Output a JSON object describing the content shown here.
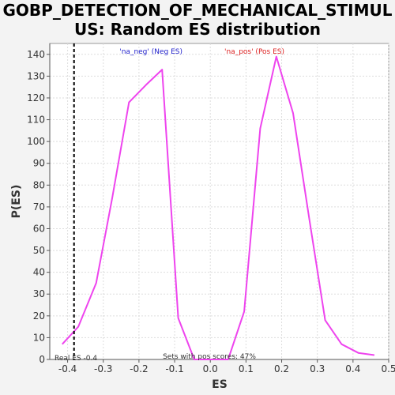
{
  "chart_data": {
    "type": "line",
    "title_line1": "GOBP_DETECTION_OF_MECHANICAL_STIMUL",
    "title_line2": "US: Random ES distribution",
    "xlabel": "ES",
    "ylabel": "P(ES)",
    "xlim": [
      -0.45,
      0.5
    ],
    "ylim": [
      0,
      145
    ],
    "xticks": [
      -0.4,
      -0.3,
      -0.2,
      -0.1,
      0.0,
      0.1,
      0.2,
      0.3,
      0.4,
      0.5
    ],
    "xtick_labels": [
      "-0.4",
      "-0.3",
      "-0.2",
      "-0.1",
      "0.0",
      "0.1",
      "0.2",
      "0.3",
      "0.4",
      "0.5"
    ],
    "yticks": [
      0,
      10,
      20,
      30,
      40,
      50,
      60,
      70,
      80,
      90,
      100,
      110,
      120,
      130,
      140
    ],
    "ytick_labels": [
      "0",
      "10",
      "20",
      "30",
      "40",
      "50",
      "60",
      "70",
      "80",
      "90",
      "100",
      "110",
      "120",
      "130",
      "140"
    ],
    "grid": true,
    "series": [
      {
        "color": "#ee44ee",
        "x": [
          -0.415,
          -0.37,
          -0.32,
          -0.275,
          -0.228,
          -0.18,
          -0.135,
          -0.09,
          -0.045,
          0.0,
          0.05,
          0.095,
          0.14,
          0.185,
          0.232,
          0.278,
          0.322,
          0.368,
          0.415,
          0.46
        ],
        "y": [
          7,
          15,
          35,
          74,
          118,
          126,
          133,
          19,
          0,
          0,
          0,
          22,
          106,
          139,
          113,
          64,
          18,
          7,
          3,
          2
        ]
      }
    ],
    "real_es": -0.382,
    "legend": {
      "neg_label": "'na_neg' (Neg ES)",
      "pos_label": "'na_pos' (Pos ES)",
      "neg_color": "#2222cc",
      "pos_color": "#dd2222",
      "placement": "top-center"
    },
    "annotations": {
      "real_es_label": "Real ES -0.4",
      "pos_scores_label": "Sets with pos scores: 47%"
    },
    "colors": {
      "background": "#f3f3f3",
      "plot_bg": "#ffffff",
      "grid": "#dddddd",
      "vline": "#000000"
    }
  }
}
